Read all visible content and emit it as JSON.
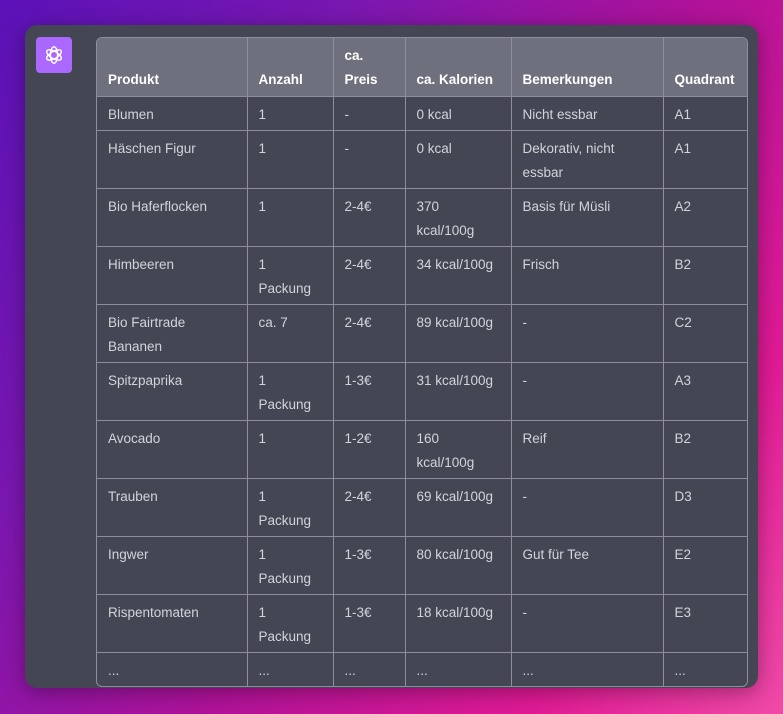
{
  "assistant": {
    "icon": "openai-logo-icon",
    "accent_color": "#ab68ff"
  },
  "table": {
    "headers": [
      "Produkt",
      "Anzahl",
      "ca. Preis",
      "ca. Kalorien",
      "Bemerkungen",
      "Quadrant"
    ],
    "rows": [
      [
        "Blumen",
        "1",
        "-",
        "0 kcal",
        "Nicht essbar",
        "A1"
      ],
      [
        "Häschen Figur",
        "1",
        "-",
        "0 kcal",
        "Dekorativ, nicht essbar",
        "A1"
      ],
      [
        "Bio Haferflocken",
        "1",
        "2-4€",
        "370 kcal/100g",
        "Basis für Müsli",
        "A2"
      ],
      [
        "Himbeeren",
        "1 Packung",
        "2-4€",
        "34 kcal/100g",
        "Frisch",
        "B2"
      ],
      [
        "Bio Fairtrade Bananen",
        "ca. 7",
        "2-4€",
        "89 kcal/100g",
        "-",
        "C2"
      ],
      [
        "Spitzpaprika",
        "1 Packung",
        "1-3€",
        "31 kcal/100g",
        "-",
        "A3"
      ],
      [
        "Avocado",
        "1",
        "1-2€",
        "160 kcal/100g",
        "Reif",
        "B2"
      ],
      [
        "Trauben",
        "1 Packung",
        "2-4€",
        "69 kcal/100g",
        "-",
        "D3"
      ],
      [
        "Ingwer",
        "1 Packung",
        "1-3€",
        "80 kcal/100g",
        "Gut für Tee",
        "E2"
      ],
      [
        "Rispentomaten",
        "1 Packung",
        "1-3€",
        "18 kcal/100g",
        "-",
        "E3"
      ],
      [
        "...",
        "...",
        "...",
        "...",
        "...",
        "..."
      ]
    ]
  }
}
